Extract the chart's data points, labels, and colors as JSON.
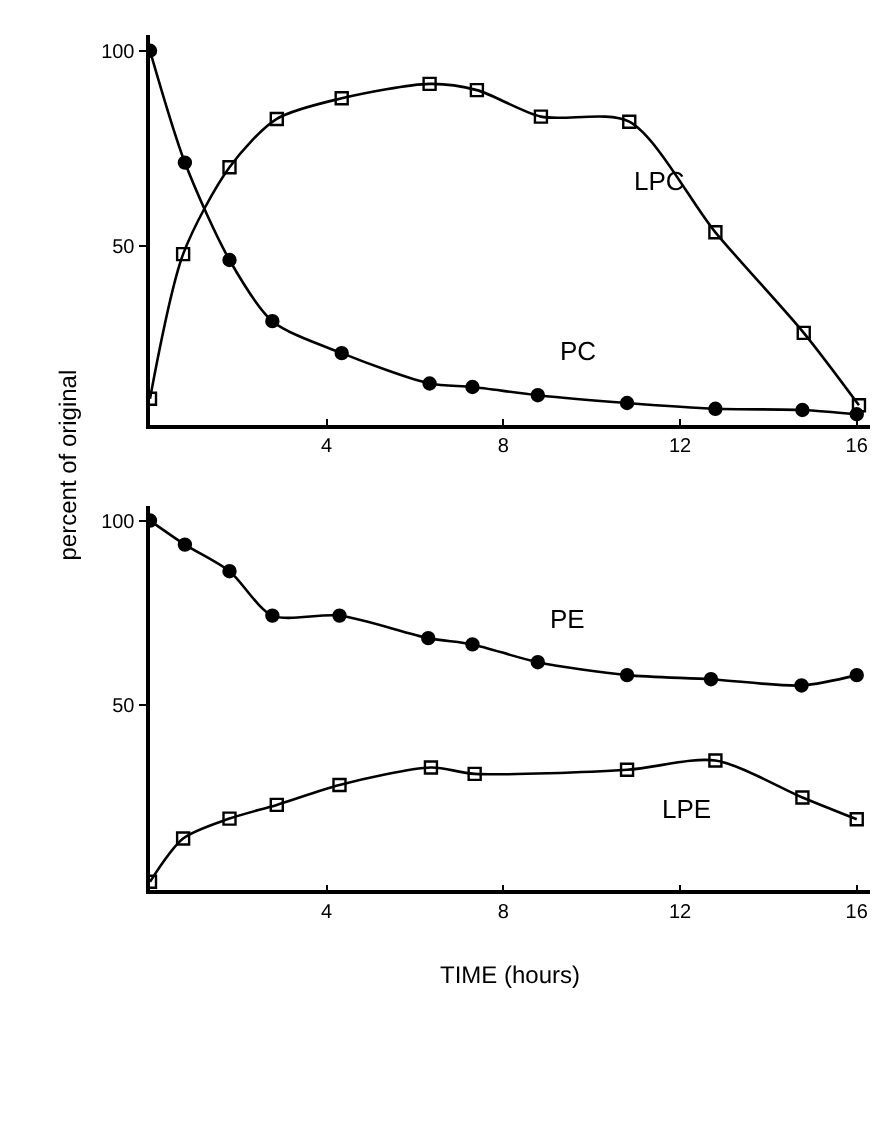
{
  "chart_data": [
    {
      "type": "line",
      "xlim": [
        0,
        16.3
      ],
      "xticks": [
        4,
        8,
        12,
        16
      ],
      "ylim": [
        4,
        104
      ],
      "yticks": [
        50,
        100
      ],
      "ylabel": "percent of original",
      "series": [
        {
          "name": "LPC",
          "color": "#000000",
          "marker": "square",
          "x": [
            0,
            0.75,
            1.8,
            2.87,
            4.34,
            6.33,
            7.4,
            8.85,
            10.85,
            12.8,
            14.8,
            16.05
          ],
          "values": [
            10.7,
            47.8,
            70.1,
            82.5,
            87.8,
            91.5,
            89.9,
            83.1,
            81.8,
            53.4,
            27.6,
            9
          ]
        },
        {
          "name": "PC",
          "color": "#000000",
          "marker": "circle",
          "x": [
            0,
            0.79,
            1.8,
            2.77,
            4.34,
            6.33,
            7.3,
            8.78,
            10.8,
            12.8,
            14.77,
            16
          ],
          "values": [
            100,
            71.3,
            46.3,
            30.6,
            22.4,
            14.6,
            13.7,
            11.6,
            9.6,
            8.1,
            7.8,
            6.7
          ]
        }
      ]
    },
    {
      "type": "line",
      "xlim": [
        0,
        16.3
      ],
      "xticks": [
        4,
        8,
        12,
        16
      ],
      "ylim": [
        0,
        104
      ],
      "yticks": [
        50,
        100
      ],
      "xlabel": "TIME (hours)",
      "series": [
        {
          "name": "PE",
          "color": "#000000",
          "marker": "circle",
          "x": [
            0,
            0.79,
            1.8,
            2.77,
            4.29,
            6.3,
            7.3,
            8.78,
            10.8,
            12.7,
            14.75,
            16
          ],
          "values": [
            100,
            93.5,
            86.3,
            74.3,
            74.3,
            68.2,
            66.5,
            61.7,
            58.2,
            57.1,
            55.4,
            58.2
          ]
        },
        {
          "name": "LPE",
          "color": "#000000",
          "marker": "square",
          "x": [
            0,
            0.75,
            1.8,
            2.87,
            4.29,
            6.36,
            7.35,
            10.8,
            12.8,
            14.77,
            16
          ],
          "values": [
            2.3,
            14,
            19.4,
            23.1,
            28.5,
            33.2,
            31.5,
            32.6,
            35.1,
            25.1,
            19.2
          ]
        }
      ]
    }
  ]
}
